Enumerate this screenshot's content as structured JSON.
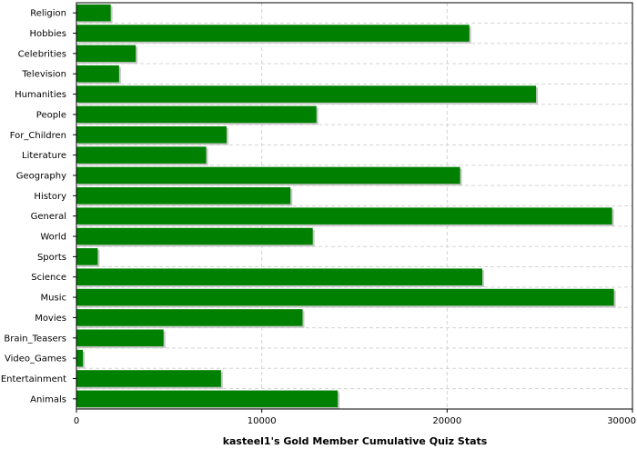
{
  "chart_data": {
    "type": "bar",
    "orientation": "horizontal",
    "categories": [
      "Religion",
      "Hobbies",
      "Celebrities",
      "Television",
      "Humanities",
      "People",
      "For_Children",
      "Literature",
      "Geography",
      "History",
      "General",
      "World",
      "Sports",
      "Science",
      "Music",
      "Movies",
      "Brain_Teasers",
      "Video_Games",
      "Entertainment",
      "Animals"
    ],
    "values": [
      1850,
      21200,
      3200,
      2300,
      24800,
      12950,
      8100,
      7000,
      20700,
      11550,
      28900,
      12750,
      1150,
      21900,
      29000,
      12200,
      4700,
      350,
      7800,
      14100
    ],
    "xlim": [
      0,
      30000
    ],
    "xticks": [
      "0",
      "10000",
      "20000",
      "30000"
    ],
    "xlabel": "kasteel1's Gold Member Cumulative Quiz Stats",
    "ylabel": "",
    "title": "",
    "grid": true,
    "colors": {
      "bar": "#008000",
      "bar_shadow": "#c8c8c8",
      "grid": "#d3d3d3",
      "axis": "#000000"
    }
  }
}
